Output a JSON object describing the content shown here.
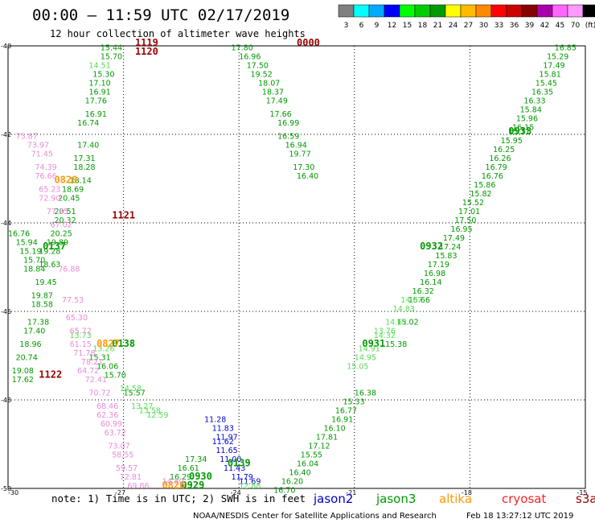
{
  "title": "00:00 – 11:59 UTC 02/17/2019",
  "subtitle": "12 hour collection of altimeter wave heights",
  "colorbar": {
    "ticks": [
      "3",
      "6",
      "9",
      "12",
      "15",
      "18",
      "21",
      "24",
      "27",
      "30",
      "33",
      "36",
      "39",
      "42",
      "45",
      "70",
      "(ft)"
    ],
    "colors": [
      "#808080",
      "#00ffff",
      "#00aaff",
      "#0000ff",
      "#00ff00",
      "#00cc00",
      "#009900",
      "#ffff00",
      "#ffbb00",
      "#ff8800",
      "#ff0000",
      "#cc0000",
      "#880000",
      "#aa00aa",
      "#ff66ff",
      "#ff99ff",
      "#000000"
    ]
  },
  "axes": {
    "lon_labels": [
      "-30",
      "-27",
      "-24",
      "-21",
      "-18",
      "-15"
    ],
    "lat_labels": [
      "-40",
      "-42",
      "-44",
      "-46",
      "-48",
      "-50"
    ]
  },
  "chart_data": {
    "type": "scatter",
    "xlim": [
      -30,
      -15
    ],
    "ylim": [
      -50,
      -40
    ],
    "x_unit": "longitude (deg)",
    "y_unit": "latitude (deg)",
    "grid": true,
    "series": [
      {
        "name": "jason2",
        "color": "#0000cc",
        "points": [
          {
            "lon": -24.9,
            "lat": -48.5,
            "v": "11.28"
          },
          {
            "lon": -24.7,
            "lat": -48.7,
            "v": "11.83"
          },
          {
            "lon": -24.6,
            "lat": -48.9,
            "v": "11.97"
          },
          {
            "lon": -24.7,
            "lat": -49.0,
            "v": "11.62"
          },
          {
            "lon": -24.6,
            "lat": -49.2,
            "v": "11.65"
          },
          {
            "lon": -24.5,
            "lat": -49.4,
            "v": "11.00"
          },
          {
            "lon": -24.4,
            "lat": -49.6,
            "v": "11.43"
          },
          {
            "lon": -24.2,
            "lat": -49.8,
            "v": "11.79"
          },
          {
            "lon": -24.0,
            "lat": -49.9,
            "v": "11.69"
          }
        ],
        "time_labels": []
      },
      {
        "name": "jason3",
        "color": "#009900",
        "points": [
          {
            "lon": -27.6,
            "lat": -40.1,
            "v": "15.44"
          },
          {
            "lon": -27.6,
            "lat": -40.3,
            "v": "15.70"
          },
          {
            "lon": -27.8,
            "lat": -40.7,
            "v": "15.30"
          },
          {
            "lon": -27.9,
            "lat": -40.9,
            "v": "17.10"
          },
          {
            "lon": -27.9,
            "lat": -41.1,
            "v": "16.91"
          },
          {
            "lon": -28.0,
            "lat": -41.3,
            "v": "17.76"
          },
          {
            "lon": -28.0,
            "lat": -41.6,
            "v": "16.91"
          },
          {
            "lon": -28.2,
            "lat": -41.8,
            "v": "16.74"
          },
          {
            "lon": -28.2,
            "lat": -42.3,
            "v": "17.40"
          },
          {
            "lon": -28.3,
            "lat": -42.6,
            "v": "17.31"
          },
          {
            "lon": -28.3,
            "lat": -42.8,
            "v": "18.28"
          },
          {
            "lon": -28.4,
            "lat": -43.1,
            "v": "18.14"
          },
          {
            "lon": -28.6,
            "lat": -43.3,
            "v": "18.69"
          },
          {
            "lon": -28.7,
            "lat": -43.5,
            "v": "20.45"
          },
          {
            "lon": -28.8,
            "lat": -43.8,
            "v": "20.51"
          },
          {
            "lon": -28.8,
            "lat": -44.0,
            "v": "20.32"
          },
          {
            "lon": -28.9,
            "lat": -44.3,
            "v": "20.25"
          },
          {
            "lon": -29.0,
            "lat": -44.5,
            "v": "19.89"
          },
          {
            "lon": -29.2,
            "lat": -44.7,
            "v": "19.28"
          },
          {
            "lon": -29.2,
            "lat": -45.0,
            "v": "18.63"
          },
          {
            "lon": -29.3,
            "lat": -45.4,
            "v": "19.45"
          },
          {
            "lon": -29.4,
            "lat": -45.7,
            "v": "19.87"
          },
          {
            "lon": -29.4,
            "lat": -45.9,
            "v": "18.58"
          },
          {
            "lon": -29.5,
            "lat": -46.3,
            "v": "17.38"
          },
          {
            "lon": -29.6,
            "lat": -46.5,
            "v": "17.40"
          },
          {
            "lon": -29.7,
            "lat": -46.8,
            "v": "18.96"
          },
          {
            "lon": -29.8,
            "lat": -47.1,
            "v": "20.74"
          },
          {
            "lon": -29.9,
            "lat": -47.4,
            "v": "19.08"
          },
          {
            "lon": -29.9,
            "lat": -47.6,
            "v": "17.62"
          },
          {
            "lon": -30.0,
            "lat": -44.3,
            "v": "16.76"
          },
          {
            "lon": -29.8,
            "lat": -44.5,
            "v": "15.94"
          },
          {
            "lon": -29.7,
            "lat": -44.7,
            "v": "15.19"
          },
          {
            "lon": -29.6,
            "lat": -44.9,
            "v": "15.70"
          },
          {
            "lon": -29.6,
            "lat": -45.1,
            "v": "18.84"
          },
          {
            "lon": -27.9,
            "lat": -47.1,
            "v": "15.31"
          },
          {
            "lon": -27.7,
            "lat": -47.3,
            "v": "16.06"
          },
          {
            "lon": -27.5,
            "lat": -47.5,
            "v": "15.70"
          },
          {
            "lon": -27.0,
            "lat": -47.9,
            "v": "15.57"
          },
          {
            "lon": -24.2,
            "lat": -40.1,
            "v": "17.80"
          },
          {
            "lon": -24.0,
            "lat": -40.3,
            "v": "16.96"
          },
          {
            "lon": -23.8,
            "lat": -40.5,
            "v": "17.50"
          },
          {
            "lon": -23.7,
            "lat": -40.7,
            "v": "19.52"
          },
          {
            "lon": -23.5,
            "lat": -40.9,
            "v": "18.07"
          },
          {
            "lon": -23.4,
            "lat": -41.1,
            "v": "18.37"
          },
          {
            "lon": -23.3,
            "lat": -41.3,
            "v": "17.49"
          },
          {
            "lon": -23.2,
            "lat": -41.6,
            "v": "17.66"
          },
          {
            "lon": -23.0,
            "lat": -41.8,
            "v": "16.99"
          },
          {
            "lon": -23.0,
            "lat": -42.1,
            "v": "16.59"
          },
          {
            "lon": -22.8,
            "lat": -42.3,
            "v": "16.94"
          },
          {
            "lon": -22.7,
            "lat": -42.5,
            "v": "19.77"
          },
          {
            "lon": -22.6,
            "lat": -42.8,
            "v": "17.30"
          },
          {
            "lon": -22.5,
            "lat": -43.0,
            "v": "16.40"
          },
          {
            "lon": -15.8,
            "lat": -40.1,
            "v": "16.85"
          },
          {
            "lon": -16.0,
            "lat": -40.3,
            "v": "15.29"
          },
          {
            "lon": -16.1,
            "lat": -40.5,
            "v": "17.49"
          },
          {
            "lon": -16.2,
            "lat": -40.7,
            "v": "15.81"
          },
          {
            "lon": -16.3,
            "lat": -40.9,
            "v": "15.45"
          },
          {
            "lon": -16.4,
            "lat": -41.1,
            "v": "16.35"
          },
          {
            "lon": -16.6,
            "lat": -41.3,
            "v": "16.33"
          },
          {
            "lon": -16.7,
            "lat": -41.5,
            "v": "15.84"
          },
          {
            "lon": -16.8,
            "lat": -41.7,
            "v": "15.96"
          },
          {
            "lon": -16.9,
            "lat": -41.9,
            "v": "16.15"
          },
          {
            "lon": -17.0,
            "lat": -42.0,
            "v": "15.71"
          },
          {
            "lon": -17.2,
            "lat": -42.2,
            "v": "15.95"
          },
          {
            "lon": -17.4,
            "lat": -42.4,
            "v": "16.25"
          },
          {
            "lon": -17.5,
            "lat": -42.6,
            "v": "16.26"
          },
          {
            "lon": -17.6,
            "lat": -42.8,
            "v": "16.79"
          },
          {
            "lon": -17.7,
            "lat": -43.0,
            "v": "16.76"
          },
          {
            "lon": -17.9,
            "lat": -43.2,
            "v": "15.86"
          },
          {
            "lon": -18.0,
            "lat": -43.4,
            "v": "15.82"
          },
          {
            "lon": -18.2,
            "lat": -43.6,
            "v": "15.52"
          },
          {
            "lon": -18.3,
            "lat": -43.8,
            "v": "17.01"
          },
          {
            "lon": -18.4,
            "lat": -44.0,
            "v": "17.50"
          },
          {
            "lon": -18.5,
            "lat": -44.2,
            "v": "16.95"
          },
          {
            "lon": -18.7,
            "lat": -44.4,
            "v": "17.49"
          },
          {
            "lon": -18.8,
            "lat": -44.6,
            "v": "17.24"
          },
          {
            "lon": -18.9,
            "lat": -44.8,
            "v": "15.83"
          },
          {
            "lon": -19.1,
            "lat": -45.0,
            "v": "17.19"
          },
          {
            "lon": -19.2,
            "lat": -45.2,
            "v": "16.98"
          },
          {
            "lon": -19.3,
            "lat": -45.4,
            "v": "16.14"
          },
          {
            "lon": -19.5,
            "lat": -45.6,
            "v": "16.32"
          },
          {
            "lon": -19.6,
            "lat": -45.8,
            "v": "15.66"
          },
          {
            "lon": -19.9,
            "lat": -46.3,
            "v": "15.02"
          },
          {
            "lon": -20.2,
            "lat": -46.8,
            "v": "15.38"
          },
          {
            "lon": -21.0,
            "lat": -47.9,
            "v": "16.38"
          },
          {
            "lon": -21.3,
            "lat": -48.1,
            "v": "15.33"
          },
          {
            "lon": -21.5,
            "lat": -48.3,
            "v": "16.77"
          },
          {
            "lon": -21.6,
            "lat": -48.5,
            "v": "16.91"
          },
          {
            "lon": -21.8,
            "lat": -48.7,
            "v": "16.10"
          },
          {
            "lon": -22.0,
            "lat": -48.9,
            "v": "17.81"
          },
          {
            "lon": -22.2,
            "lat": -49.1,
            "v": "17.12"
          },
          {
            "lon": -22.4,
            "lat": -49.3,
            "v": "15.55"
          },
          {
            "lon": -22.5,
            "lat": -49.5,
            "v": "16.04"
          },
          {
            "lon": -22.7,
            "lat": -49.7,
            "v": "16.40"
          },
          {
            "lon": -22.9,
            "lat": -49.9,
            "v": "16.20"
          },
          {
            "lon": -23.1,
            "lat": -50.1,
            "v": "16.70"
          },
          {
            "lon": -25.4,
            "lat": -49.4,
            "v": "17.34"
          },
          {
            "lon": -25.6,
            "lat": -49.6,
            "v": "16.61"
          },
          {
            "lon": -25.8,
            "lat": -49.8,
            "v": "16.29"
          }
        ],
        "time_labels": [
          {
            "lon": -29.1,
            "lat": -44.6,
            "text": "0137"
          },
          {
            "lon": -27.3,
            "lat": -46.8,
            "text": "0138"
          },
          {
            "lon": -20.8,
            "lat": -46.8,
            "text": "0931"
          },
          {
            "lon": -19.3,
            "lat": -44.6,
            "text": "0932"
          },
          {
            "lon": -17.0,
            "lat": -42.0,
            "text": "0933"
          },
          {
            "lon": -24.3,
            "lat": -49.5,
            "text": "0139"
          },
          {
            "lon": -25.3,
            "lat": -49.8,
            "text": "0930"
          },
          {
            "lon": -25.5,
            "lat": -50.0,
            "text": "0929"
          }
        ]
      },
      {
        "name": "jason3-light",
        "color": "#55dd55",
        "points": [
          {
            "lon": -27.9,
            "lat": -40.5,
            "v": "14.51"
          },
          {
            "lon": -27.1,
            "lat": -47.8,
            "v": "14.58"
          },
          {
            "lon": -26.8,
            "lat": -48.2,
            "v": "13.27"
          },
          {
            "lon": -26.4,
            "lat": -48.4,
            "v": "12.59"
          },
          {
            "lon": -26.6,
            "lat": -48.3,
            "v": "13.58"
          },
          {
            "lon": -28.4,
            "lat": -46.6,
            "v": "13.73"
          },
          {
            "lon": -27.8,
            "lat": -46.9,
            "v": "13.26"
          },
          {
            "lon": -19.8,
            "lat": -45.8,
            "v": "14.67"
          },
          {
            "lon": -20.0,
            "lat": -46.0,
            "v": "14.83"
          },
          {
            "lon": -20.2,
            "lat": -46.3,
            "v": "14.62"
          },
          {
            "lon": -20.5,
            "lat": -46.5,
            "v": "13.76"
          },
          {
            "lon": -20.5,
            "lat": -46.6,
            "v": "14.32"
          },
          {
            "lon": -20.9,
            "lat": -46.9,
            "v": "14.91"
          },
          {
            "lon": -21.0,
            "lat": -47.1,
            "v": "14.95"
          },
          {
            "lon": -21.2,
            "lat": -47.3,
            "v": "15.05"
          },
          {
            "lon": -24.0,
            "lat": -50.0,
            "v": "12.88"
          }
        ],
        "time_labels": []
      },
      {
        "name": "altika",
        "color": "#ff9900",
        "points": [],
        "time_labels": [
          {
            "lon": -28.8,
            "lat": -43.1,
            "text": "0828"
          },
          {
            "lon": -27.7,
            "lat": -46.8,
            "text": "0827"
          },
          {
            "lon": -26.0,
            "lat": -50.0,
            "text": "0826"
          }
        ]
      },
      {
        "name": "cryosat",
        "color": "#ff2222",
        "points": [],
        "time_labels": []
      },
      {
        "name": "s3a",
        "color": "#990000",
        "points": [],
        "time_labels": [
          {
            "lon": -26.7,
            "lat": -40.0,
            "text": "1119"
          },
          {
            "lon": -26.7,
            "lat": -40.2,
            "text": "1120"
          },
          {
            "lon": -27.3,
            "lat": -43.9,
            "text": "1121"
          },
          {
            "lon": -29.2,
            "lat": -47.5,
            "text": "1122"
          },
          {
            "lon": -22.5,
            "lat": -40.0,
            "text": "0000"
          }
        ]
      },
      {
        "name": "pink",
        "color": "#e88ad6",
        "points": [
          {
            "lon": -29.8,
            "lat": -42.1,
            "v": "73.87"
          },
          {
            "lon": -29.5,
            "lat": -42.3,
            "v": "73.97"
          },
          {
            "lon": -29.4,
            "lat": -42.5,
            "v": "71.45"
          },
          {
            "lon": -29.3,
            "lat": -42.8,
            "v": "74.39"
          },
          {
            "lon": -29.3,
            "lat": -43.0,
            "v": "76.66"
          },
          {
            "lon": -29.2,
            "lat": -43.3,
            "v": "65.23"
          },
          {
            "lon": -29.2,
            "lat": -43.5,
            "v": "72.90"
          },
          {
            "lon": -29.0,
            "lat": -43.8,
            "v": "77.85"
          },
          {
            "lon": -28.9,
            "lat": -44.1,
            "v": "67.02"
          },
          {
            "lon": -28.7,
            "lat": -45.1,
            "v": "76.88"
          },
          {
            "lon": -28.6,
            "lat": -45.8,
            "v": "77.53"
          },
          {
            "lon": -28.5,
            "lat": -46.2,
            "v": "65.30"
          },
          {
            "lon": -28.4,
            "lat": -46.5,
            "v": "65.72"
          },
          {
            "lon": -28.4,
            "lat": -46.8,
            "v": "61.15"
          },
          {
            "lon": -28.3,
            "lat": -47.0,
            "v": "71.78"
          },
          {
            "lon": -28.1,
            "lat": -47.2,
            "v": "78.21"
          },
          {
            "lon": -28.2,
            "lat": -47.4,
            "v": "64.72"
          },
          {
            "lon": -28.0,
            "lat": -47.6,
            "v": "72.41"
          },
          {
            "lon": -27.9,
            "lat": -47.9,
            "v": "70.72"
          },
          {
            "lon": -27.7,
            "lat": -48.2,
            "v": "68.46"
          },
          {
            "lon": -27.7,
            "lat": -48.4,
            "v": "62.36"
          },
          {
            "lon": -27.6,
            "lat": -48.6,
            "v": "60.99"
          },
          {
            "lon": -27.5,
            "lat": -48.8,
            "v": "63.72"
          },
          {
            "lon": -27.4,
            "lat": -49.1,
            "v": "73.07"
          },
          {
            "lon": -27.3,
            "lat": -49.3,
            "v": "58.55"
          },
          {
            "lon": -27.2,
            "lat": -49.6,
            "v": "59.57"
          },
          {
            "lon": -27.1,
            "lat": -49.8,
            "v": "72.81"
          },
          {
            "lon": -26.9,
            "lat": -50.0,
            "v": "69.86"
          },
          {
            "lon": -26.0,
            "lat": -49.9,
            "v": "14.80"
          }
        ],
        "time_labels": []
      }
    ]
  },
  "footer": {
    "note": "note: 1) Time is in UTC; 2) SWH is in feet",
    "legend": [
      {
        "label": "jason2",
        "color": "#0000cc"
      },
      {
        "label": "jason3",
        "color": "#009900"
      },
      {
        "label": "altika",
        "color": "#ff9900"
      },
      {
        "label": "cryosat",
        "color": "#ff2222"
      },
      {
        "label": "s3a",
        "color": "#990000"
      }
    ],
    "credit": "NOAA/NESDIS Center for Satellite Applications and Research",
    "timestamp": "Feb 18 13:27:12 UTC 2019"
  }
}
